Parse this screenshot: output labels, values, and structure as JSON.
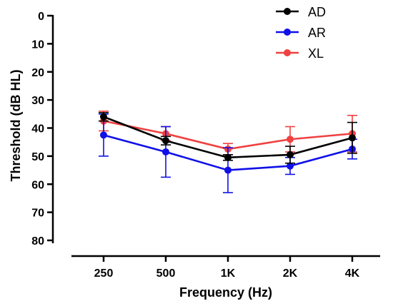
{
  "chart_data": {
    "type": "line",
    "title": "",
    "xlabel": "Frequency (Hz)",
    "ylabel": "Threshold (dB HL)",
    "categories": [
      "250",
      "500",
      "1K",
      "2K",
      "4K"
    ],
    "y_ticks": [
      "0",
      "10",
      "20",
      "30",
      "40",
      "50",
      "60",
      "70",
      "80"
    ],
    "ylim": [
      0,
      80
    ],
    "y_inverted": true,
    "legend_position": "top-right",
    "series": [
      {
        "name": "AD",
        "color": "#000000",
        "values": [
          36,
          44.5,
          50.5,
          49.5,
          43.5
        ],
        "errors": [
          1.5,
          1.5,
          1,
          3,
          5.5
        ]
      },
      {
        "name": "AR",
        "color": "#1010e8",
        "values": [
          42.5,
          48.5,
          55,
          53.5,
          47.5
        ],
        "errors": [
          7.5,
          9,
          8,
          3,
          3.5
        ]
      },
      {
        "name": "XL",
        "color": "#f04040",
        "values": [
          37.5,
          42,
          47.5,
          44,
          42
        ],
        "errors": [
          3.5,
          2.5,
          2,
          4.5,
          6.5
        ]
      }
    ]
  }
}
